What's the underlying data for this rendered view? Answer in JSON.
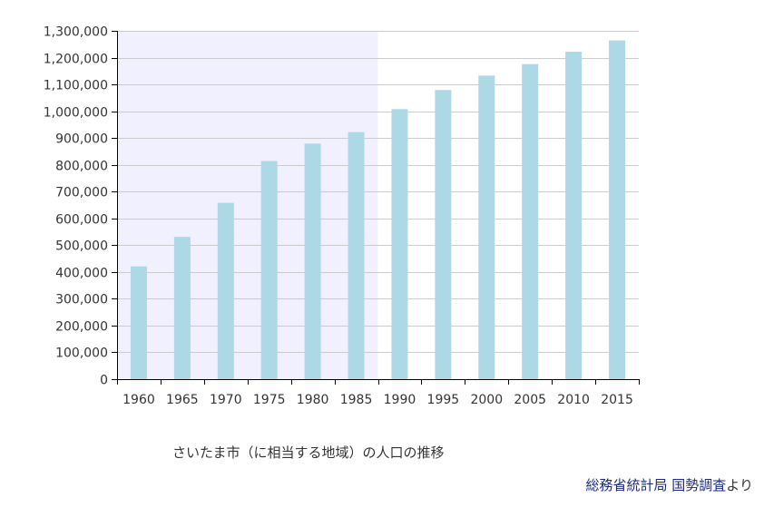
{
  "colors": {
    "bar": "#add8e6",
    "highlight_band": "#f0f0ff",
    "gridline": "#cccccc",
    "axis": "#000000",
    "link": "#1a2a7a"
  },
  "chart_data": {
    "type": "bar",
    "categories": [
      "1960",
      "1965",
      "1970",
      "1975",
      "1980",
      "1985",
      "1990",
      "1995",
      "2000",
      "2005",
      "2010",
      "2015"
    ],
    "values": [
      421000,
      531000,
      658000,
      814000,
      879000,
      922000,
      1008000,
      1079000,
      1133000,
      1176000,
      1222000,
      1264000
    ],
    "ylim": [
      0,
      1300000
    ],
    "yticks": [
      0,
      100000,
      200000,
      300000,
      400000,
      500000,
      600000,
      700000,
      800000,
      900000,
      1000000,
      1100000,
      1200000,
      1300000
    ],
    "ytick_labels": [
      "0",
      "100,000",
      "200,000",
      "300,000",
      "400,000",
      "500,000",
      "600,000",
      "700,000",
      "800,000",
      "900,000",
      "1,000,000",
      "1,100,000",
      "1,200,000",
      "1,300,000"
    ],
    "grid": true,
    "highlight_range": [
      "1960",
      "1985"
    ],
    "title": "",
    "xlabel": "",
    "ylabel": ""
  },
  "caption": "さいたま市（に相当する地域）の人口の推移",
  "source": {
    "link1": "総務省統計局",
    "link2": "国勢調査",
    "suffix": "より"
  }
}
